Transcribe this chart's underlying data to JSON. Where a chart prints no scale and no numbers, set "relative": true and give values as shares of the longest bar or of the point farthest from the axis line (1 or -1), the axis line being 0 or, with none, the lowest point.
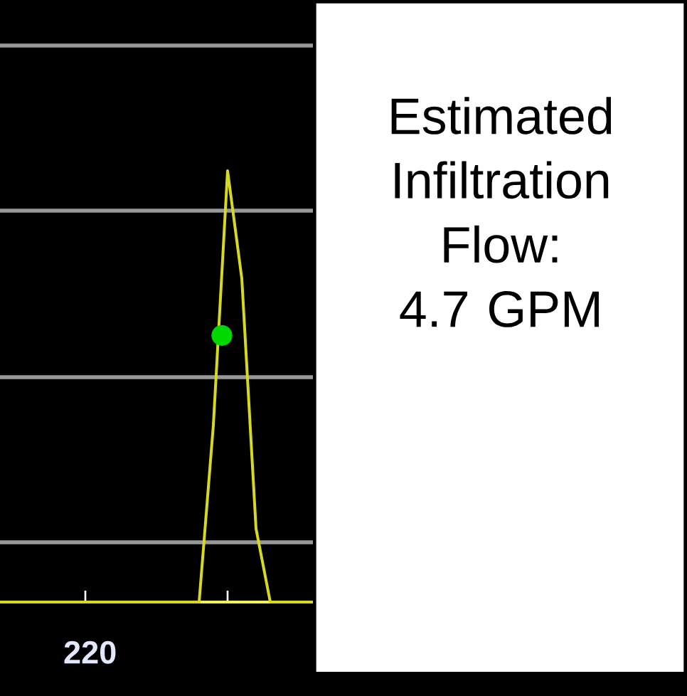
{
  "chart_data": {
    "type": "line",
    "relative": true,
    "marker": "none",
    "line_style": "solid",
    "categories": [
      null,
      null,
      null,
      null,
      null,
      null,
      null,
      null,
      null,
      null,
      null,
      null,
      null,
      null,
      null,
      null,
      null,
      null,
      null,
      null,
      null,
      null,
      null
    ],
    "series": [
      {
        "color": "#d8d820",
        "values": [
          0,
          0,
          0,
          0,
          0,
          0,
          0,
          0,
          0,
          0,
          0,
          0,
          0,
          0,
          0,
          0.41,
          1,
          0.75,
          0.17,
          0,
          0,
          0,
          0
        ]
      }
    ],
    "annotations": [
      "Estimated Infiltration Flow: 4.7 GPM",
      "220"
    ]
  }
}
